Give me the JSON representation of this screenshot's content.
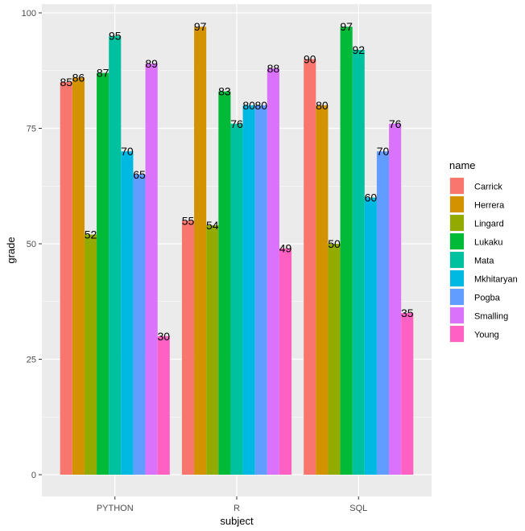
{
  "chart_data": {
    "type": "bar",
    "title": "",
    "xlabel": "subject",
    "ylabel": "grade",
    "ylim": [
      0,
      100
    ],
    "yticks": [
      0,
      25,
      50,
      75,
      100
    ],
    "categories": [
      "PYTHON",
      "R",
      "SQL"
    ],
    "legend_title": "name",
    "legend_position": "right",
    "series": [
      {
        "name": "Carrick",
        "color": "#F8766D",
        "values": [
          85,
          55,
          90
        ]
      },
      {
        "name": "Herrera",
        "color": "#D39200",
        "values": [
          86,
          97,
          80
        ]
      },
      {
        "name": "Lingard",
        "color": "#93AA00",
        "values": [
          52,
          54,
          50
        ]
      },
      {
        "name": "Lukaku",
        "color": "#00BA38",
        "values": [
          87,
          83,
          97
        ]
      },
      {
        "name": "Mata",
        "color": "#00C19F",
        "values": [
          95,
          76,
          92
        ]
      },
      {
        "name": "Mkhitaryan",
        "color": "#00B9E3",
        "values": [
          70,
          80,
          60
        ]
      },
      {
        "name": "Pogba",
        "color": "#619CFF",
        "values": [
          65,
          80,
          70
        ]
      },
      {
        "name": "Smalling",
        "color": "#DB72FB",
        "values": [
          89,
          88,
          76
        ]
      },
      {
        "name": "Young",
        "color": "#FF61C3",
        "values": [
          30,
          49,
          35
        ]
      }
    ]
  }
}
